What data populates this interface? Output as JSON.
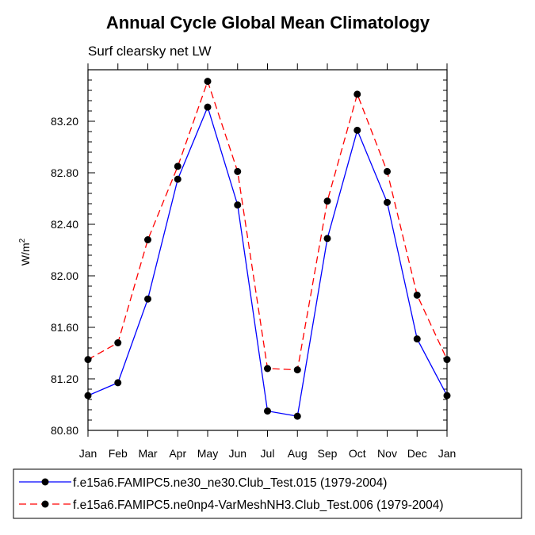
{
  "chart_data": {
    "type": "line",
    "title": "Annual Cycle Global Mean Climatology",
    "subtitle": "Surf clearsky net LW",
    "xlabel": "",
    "ylabel": "W/m",
    "ylabel_superscript": "2",
    "categories": [
      "Jan",
      "Feb",
      "Mar",
      "Apr",
      "May",
      "Jun",
      "Jul",
      "Aug",
      "Sep",
      "Oct",
      "Nov",
      "Dec",
      "Jan"
    ],
    "ylim": [
      80.8,
      83.6
    ],
    "yticks": [
      80.8,
      81.2,
      81.6,
      82.0,
      82.4,
      82.8,
      83.2
    ],
    "ytick_labels": [
      "80.80",
      "81.20",
      "81.60",
      "82.00",
      "82.40",
      "82.80",
      "83.20"
    ],
    "minor_step": 0.08,
    "legend_position": "bottom",
    "series": [
      {
        "name": "f.e15a6.FAMIPC5.ne30_ne30.Club_Test.015 (1979-2004)",
        "color": "#0000ff",
        "dash": "solid",
        "values": [
          81.07,
          81.17,
          81.82,
          82.75,
          83.31,
          82.55,
          80.95,
          80.91,
          82.29,
          83.13,
          82.57,
          81.51,
          81.07
        ]
      },
      {
        "name": "f.e15a6.FAMIPC5.ne0np4-VarMeshNH3.Club_Test.006 (1979-2004)",
        "color": "#ff0000",
        "dash": "dashed",
        "values": [
          81.35,
          81.48,
          82.28,
          82.85,
          83.51,
          82.81,
          81.28,
          81.27,
          82.58,
          83.41,
          82.81,
          81.85,
          81.35
        ]
      }
    ]
  }
}
